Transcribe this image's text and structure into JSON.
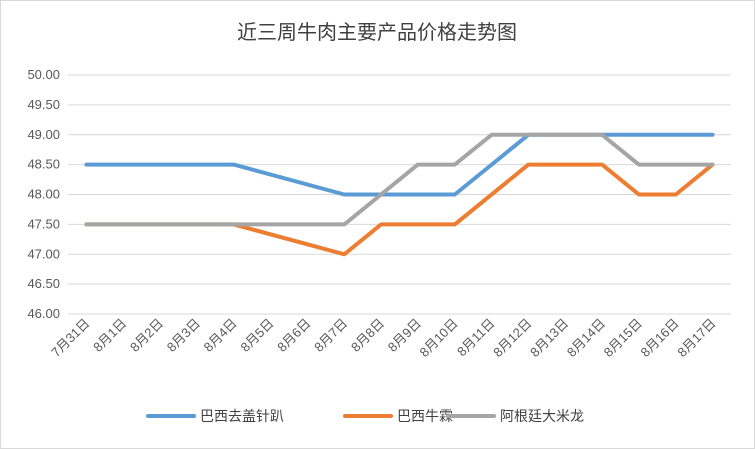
{
  "chart_data": {
    "type": "line",
    "title": "近三周牛肉主要产品价格走势图",
    "xlabel": "",
    "ylabel": "",
    "categories": [
      "7月31日",
      "8月1日",
      "8月2日",
      "8月3日",
      "8月4日",
      "8月5日",
      "8月6日",
      "8月7日",
      "8月8日",
      "8月9日",
      "8月10日",
      "8月11日",
      "8月12日",
      "8月13日",
      "8月14日",
      "8月15日",
      "8月16日",
      "8月17日"
    ],
    "ylim": [
      46.0,
      50.0
    ],
    "yticks": [
      "46.00",
      "46.50",
      "47.00",
      "47.50",
      "48.00",
      "48.50",
      "49.00",
      "49.50",
      "50.00"
    ],
    "grid": true,
    "legend_position": "bottom",
    "series": [
      {
        "name": "巴西去盖针趴",
        "color": "#5b9bd5",
        "values": [
          48.5,
          48.5,
          48.5,
          48.5,
          48.5,
          null,
          null,
          48.0,
          48.0,
          48.0,
          48.0,
          null,
          49.0,
          49.0,
          49.0,
          49.0,
          49.0,
          49.0
        ]
      },
      {
        "name": "巴西牛霖",
        "color": "#ed7d31",
        "values": [
          47.5,
          47.5,
          47.5,
          47.5,
          47.5,
          null,
          null,
          47.0,
          47.5,
          47.5,
          47.5,
          null,
          48.5,
          48.5,
          48.5,
          48.0,
          48.0,
          48.5
        ]
      },
      {
        "name": "阿根廷大米龙",
        "color": "#a5a5a5",
        "values": [
          47.5,
          47.5,
          47.5,
          47.5,
          47.5,
          47.5,
          47.5,
          47.5,
          null,
          48.5,
          48.5,
          49.0,
          49.0,
          49.0,
          49.0,
          48.5,
          48.5,
          48.5
        ]
      }
    ]
  }
}
